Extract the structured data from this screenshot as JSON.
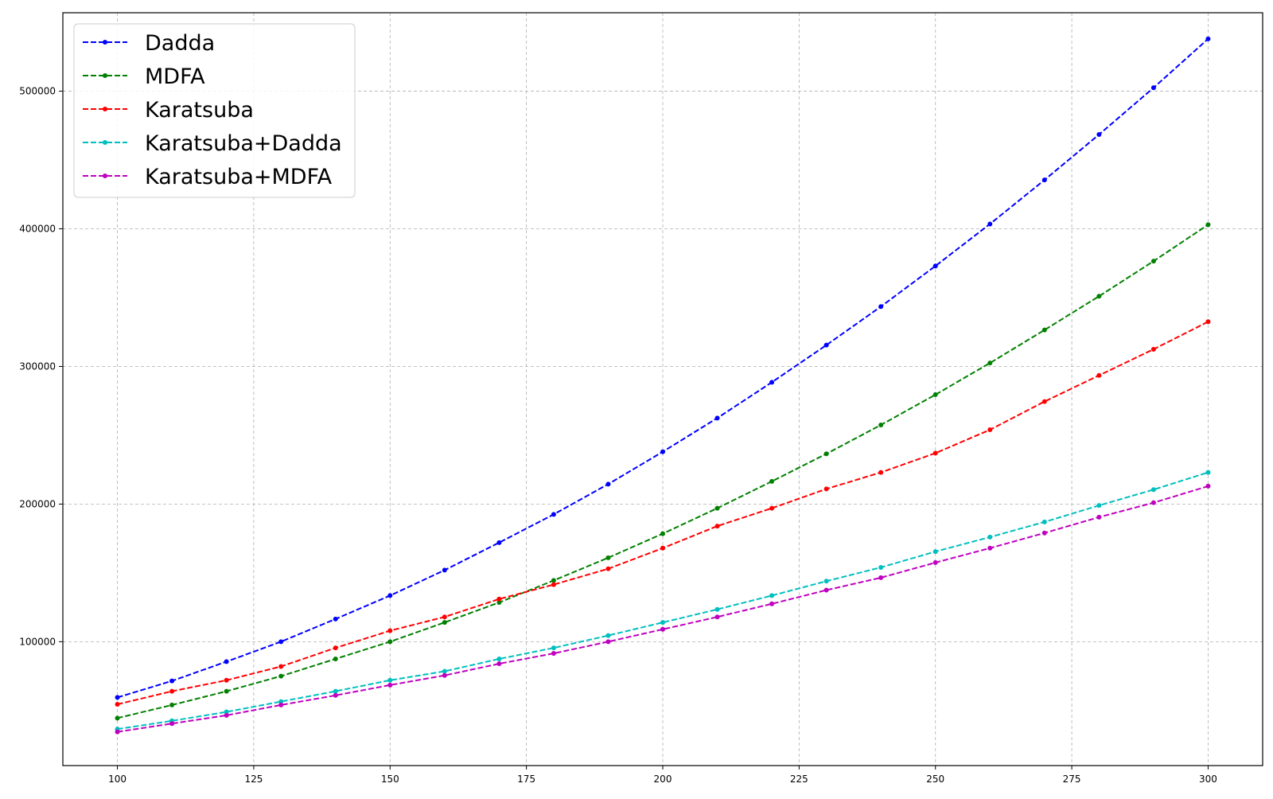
{
  "chart_data": {
    "type": "line",
    "title": "",
    "xlabel": "",
    "ylabel": "",
    "xlim": [
      90,
      310
    ],
    "ylim": [
      10000,
      557000
    ],
    "grid": true,
    "legend_position": "top-left",
    "line_style": "dashed",
    "marker": "dot",
    "x_ticks": [
      100,
      125,
      150,
      175,
      200,
      225,
      250,
      275,
      300
    ],
    "y_ticks": [
      100000,
      200000,
      300000,
      400000,
      500000
    ],
    "x": [
      100,
      110,
      120,
      130,
      140,
      150,
      160,
      170,
      180,
      190,
      200,
      210,
      220,
      230,
      240,
      250,
      260,
      270,
      280,
      290,
      300
    ],
    "series": [
      {
        "name": "Dadda",
        "color": "#0000ff",
        "values": [
          59500,
          71500,
          85500,
          100000,
          116500,
          133500,
          152000,
          172000,
          192500,
          214500,
          238000,
          262500,
          288500,
          315500,
          343500,
          373000,
          403500,
          435500,
          468500,
          502500,
          538000
        ]
      },
      {
        "name": "MDFA",
        "color": "#008000",
        "values": [
          44500,
          54000,
          64000,
          75000,
          87500,
          100000,
          114000,
          128500,
          144500,
          161000,
          178500,
          197000,
          216500,
          236500,
          257500,
          279500,
          302500,
          326500,
          351000,
          376500,
          403000
        ]
      },
      {
        "name": "Karatsuba",
        "color": "#ff0000",
        "values": [
          54500,
          64000,
          72000,
          82000,
          95500,
          108000,
          118000,
          131000,
          141500,
          153000,
          168000,
          184000,
          197000,
          211000,
          223000,
          237000,
          254000,
          274500,
          293500,
          312500,
          332500
        ]
      },
      {
        "name": "Karatsuba+Dadda",
        "color": "#00bfbf",
        "values": [
          36500,
          42500,
          49000,
          56500,
          64000,
          72000,
          78500,
          87500,
          95500,
          104500,
          114000,
          123500,
          133500,
          144000,
          154000,
          165500,
          176000,
          187000,
          199000,
          210500,
          223000
        ]
      },
      {
        "name": "Karatsuba+MDFA",
        "color": "#bf00bf",
        "values": [
          34500,
          40500,
          46500,
          54000,
          61000,
          68500,
          75500,
          84000,
          91500,
          100000,
          109000,
          118000,
          127500,
          137500,
          146500,
          157500,
          168000,
          179000,
          190500,
          201000,
          213000
        ]
      }
    ]
  }
}
